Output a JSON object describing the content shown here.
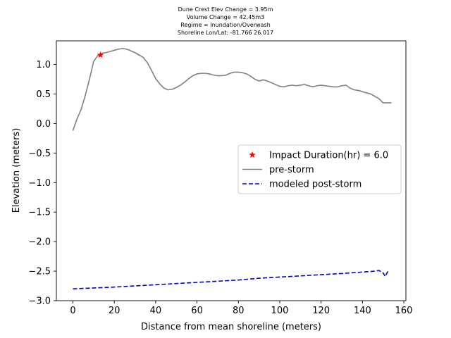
{
  "title_lines": [
    "Dune Crest Elev Change = 3.95m",
    "Volume Change = 42.45m3",
    "Regime = Inundation/Overwash",
    "Shoreline Lon/Lat: -81.766 26.017"
  ],
  "chart_data": {
    "type": "line",
    "xlabel": "Distance from mean shoreline (meters)",
    "ylabel": "Elevation (meters)",
    "xlim": [
      -8,
      161
    ],
    "ylim": [
      -3.0,
      1.4
    ],
    "xticks": [
      0,
      20,
      40,
      60,
      80,
      100,
      120,
      140,
      160
    ],
    "yticks": [
      -3.0,
      -2.5,
      -2.0,
      -1.5,
      -1.0,
      -0.5,
      0.0,
      0.5,
      1.0
    ],
    "legend_position": "center-right",
    "markers": [
      {
        "name": "Impact Duration(hr) = 6.0",
        "x": 13.3,
        "y": 1.16,
        "symbol": "star",
        "color": "#ff0000"
      }
    ],
    "series": [
      {
        "name": "pre-storm",
        "color": "#808080",
        "style": "solid",
        "x": [
          0,
          2,
          4,
          6,
          8,
          10,
          12,
          14,
          16,
          18,
          20,
          22,
          24,
          26,
          28,
          30,
          32,
          34,
          36,
          38,
          40,
          42,
          44,
          46,
          48,
          50,
          52,
          54,
          56,
          58,
          60,
          62,
          64,
          66,
          68,
          70,
          72,
          74,
          76,
          78,
          80,
          82,
          84,
          86,
          88,
          90,
          92,
          94,
          96,
          98,
          100,
          102,
          104,
          106,
          108,
          110,
          112,
          114,
          116,
          118,
          120,
          122,
          124,
          126,
          128,
          130,
          132,
          134,
          136,
          138,
          140,
          142,
          144,
          146,
          148,
          150,
          152,
          154
        ],
        "y": [
          -0.12,
          0.08,
          0.24,
          0.48,
          0.75,
          1.05,
          1.15,
          1.19,
          1.2,
          1.22,
          1.24,
          1.26,
          1.27,
          1.26,
          1.23,
          1.2,
          1.16,
          1.12,
          1.03,
          0.9,
          0.76,
          0.67,
          0.6,
          0.57,
          0.58,
          0.61,
          0.65,
          0.7,
          0.76,
          0.81,
          0.84,
          0.85,
          0.85,
          0.84,
          0.82,
          0.81,
          0.81,
          0.82,
          0.85,
          0.87,
          0.87,
          0.86,
          0.84,
          0.8,
          0.75,
          0.72,
          0.74,
          0.72,
          0.69,
          0.66,
          0.63,
          0.62,
          0.64,
          0.65,
          0.64,
          0.65,
          0.66,
          0.64,
          0.62,
          0.64,
          0.65,
          0.64,
          0.63,
          0.62,
          0.62,
          0.64,
          0.65,
          0.6,
          0.57,
          0.56,
          0.54,
          0.52,
          0.5,
          0.46,
          0.42,
          0.35,
          0.35,
          0.35
        ]
      },
      {
        "name": "modeled post-storm",
        "color": "#0000cc",
        "style": "dashed",
        "x": [
          0,
          10,
          20,
          30,
          40,
          50,
          60,
          70,
          80,
          90,
          100,
          110,
          120,
          130,
          140,
          146,
          148,
          150,
          151,
          152,
          153
        ],
        "y": [
          -2.8,
          -2.785,
          -2.77,
          -2.75,
          -2.73,
          -2.71,
          -2.69,
          -2.67,
          -2.65,
          -2.62,
          -2.6,
          -2.58,
          -2.56,
          -2.54,
          -2.515,
          -2.5,
          -2.49,
          -2.53,
          -2.59,
          -2.52,
          -2.48
        ]
      }
    ]
  }
}
